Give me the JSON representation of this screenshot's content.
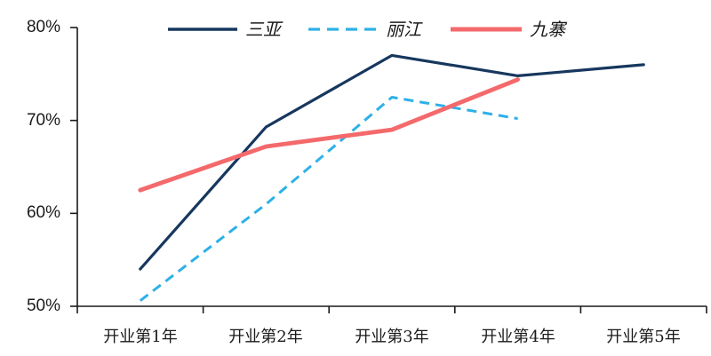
{
  "chart_data": {
    "type": "line",
    "title": "",
    "categories": [
      "开业第1年",
      "开业第2年",
      "开业第3年",
      "开业第4年",
      "开业第5年"
    ],
    "series": [
      {
        "name": "三亚",
        "color": "#17375E",
        "width": 3.2,
        "swatch_width": 3.5,
        "dash": "",
        "values": [
          54,
          69.3,
          77,
          74.8,
          76
        ]
      },
      {
        "name": "丽江",
        "color": "#2EB0E8",
        "width": 3,
        "swatch_width": 3.2,
        "dash": "11,7",
        "values": [
          50.6,
          61,
          72.5,
          70.2,
          null
        ]
      },
      {
        "name": "九寨",
        "color": "#F4696B",
        "width": 4.8,
        "swatch_width": 5,
        "dash": "",
        "values": [
          62.5,
          67.2,
          69,
          74.4,
          null
        ]
      }
    ],
    "ylim": [
      50,
      80
    ],
    "yticks": [
      80,
      70,
      60,
      50
    ],
    "ytick_labels": [
      "80%",
      "70%",
      "60%",
      "50%"
    ],
    "xlabel": "",
    "ylabel": "",
    "grid": false,
    "legend_position": "top",
    "axis_color": "#1a1a1a"
  }
}
